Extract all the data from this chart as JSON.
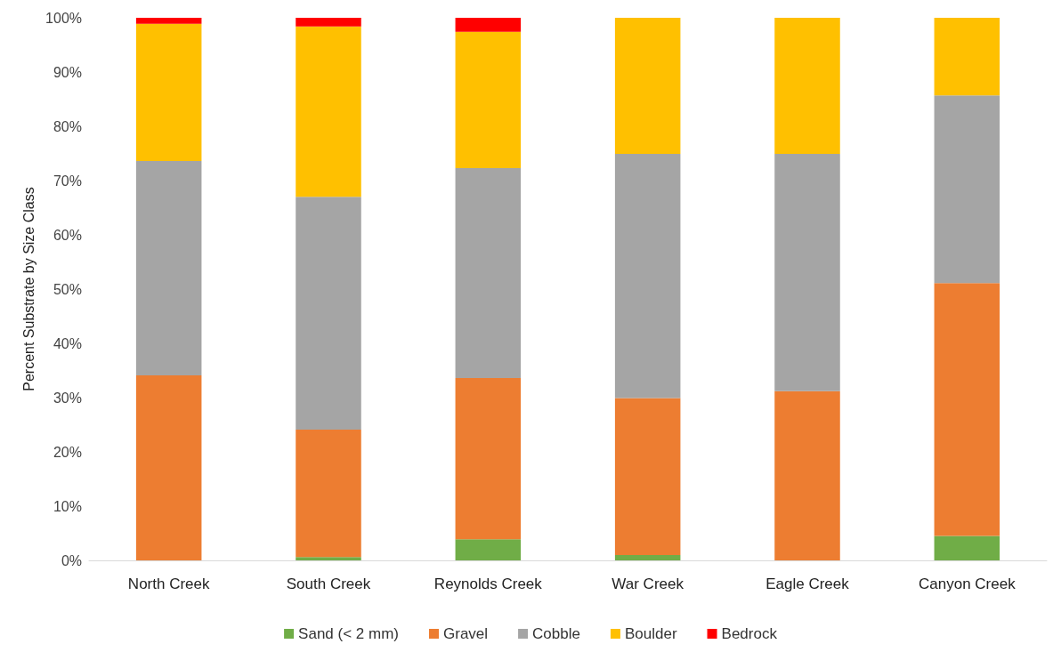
{
  "chart_data": {
    "type": "bar",
    "stacked": true,
    "ylabel": "Percent Substrate by Size Class",
    "categories": [
      "North Creek",
      "South Creek",
      "Reynolds Creek",
      "War Creek",
      "Eagle Creek",
      "Canyon Creek"
    ],
    "series": [
      {
        "name": "Sand (< 2 mm)",
        "color": "#70ad47",
        "values": [
          0,
          0.6,
          3.9,
          1.0,
          0,
          4.5
        ]
      },
      {
        "name": "Gravel",
        "color": "#ed7d31",
        "values": [
          34.1,
          23.5,
          29.7,
          28.9,
          31.2,
          46.6
        ]
      },
      {
        "name": "Cobble",
        "color": "#a5a5a5",
        "values": [
          39.5,
          42.9,
          38.7,
          45.0,
          43.7,
          34.6
        ]
      },
      {
        "name": "Boulder",
        "color": "#ffc000",
        "values": [
          25.3,
          31.4,
          25.1,
          25.1,
          25.1,
          14.3
        ]
      },
      {
        "name": "Bedrock",
        "color": "#ff0000",
        "values": [
          1.1,
          1.6,
          2.6,
          0,
          0,
          0
        ]
      }
    ],
    "ylim": [
      0,
      100
    ],
    "yticks": [
      {
        "value": 0,
        "label": "0%"
      },
      {
        "value": 10,
        "label": "10%"
      },
      {
        "value": 20,
        "label": "20%"
      },
      {
        "value": 30,
        "label": "30%"
      },
      {
        "value": 40,
        "label": "40%"
      },
      {
        "value": 50,
        "label": "50%"
      },
      {
        "value": 60,
        "label": "60%"
      },
      {
        "value": 70,
        "label": "70%"
      },
      {
        "value": 80,
        "label": "80%"
      },
      {
        "value": 90,
        "label": "90%"
      },
      {
        "value": 100,
        "label": "100%"
      }
    ],
    "grid": false,
    "legend": "bottom"
  }
}
